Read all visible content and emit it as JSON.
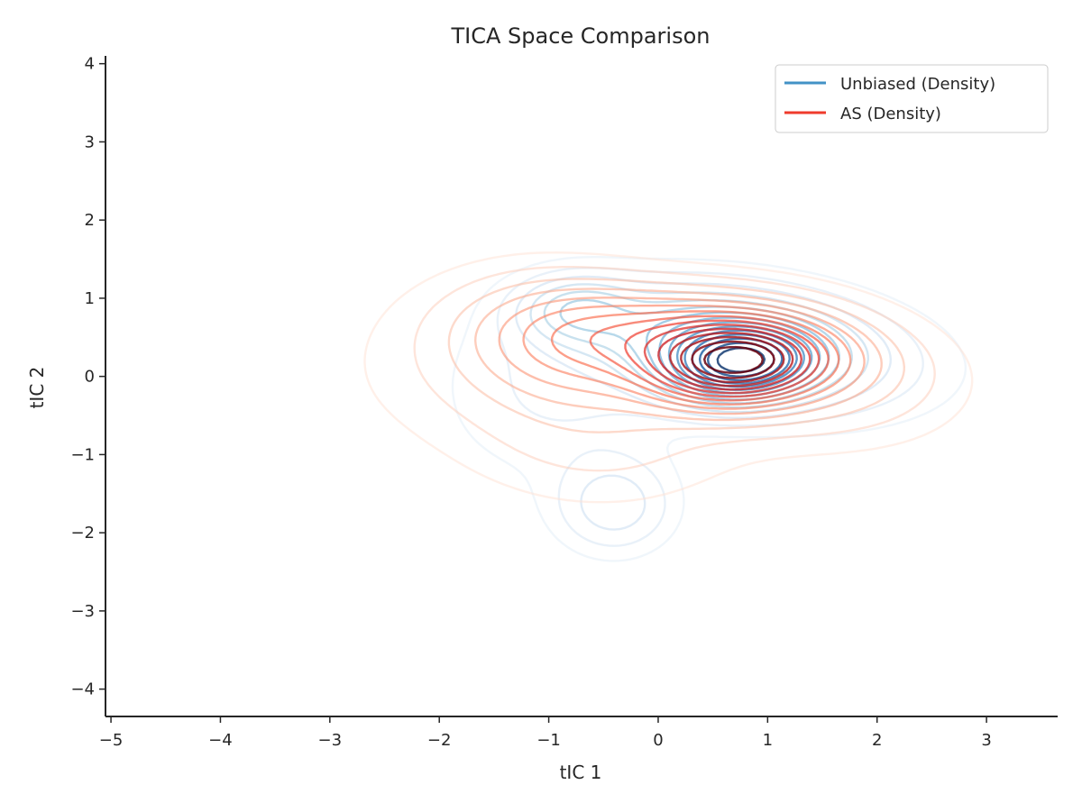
{
  "chart_data": {
    "type": "contour",
    "title": "TICA Space Comparison",
    "xlabel": "tIC 1",
    "ylabel": "tIC 2",
    "xlim": [
      -5.05,
      3.65
    ],
    "ylim": [
      -4.35,
      4.1
    ],
    "xticks": [
      -5,
      -4,
      -3,
      -2,
      -1,
      0,
      1,
      2,
      3
    ],
    "yticks": [
      -4,
      -3,
      -2,
      -1,
      0,
      1,
      2,
      3,
      4
    ],
    "xtick_labels": [
      "−5",
      "−4",
      "−3",
      "−2",
      "−1",
      "0",
      "1",
      "2",
      "3"
    ],
    "ytick_labels": [
      "−4",
      "−3",
      "−2",
      "−1",
      "0",
      "1",
      "2",
      "3",
      "4"
    ],
    "grid": false,
    "legend_position": "top-right",
    "series": [
      {
        "name": "Unbiased (Density)",
        "color": "#4292c6",
        "colormap": "Blues",
        "components": [
          {
            "mx": 0.75,
            "my": 0.15,
            "sx": 0.42,
            "sy": 0.3,
            "rho": 0.1,
            "w": 1.0
          },
          {
            "mx": 0.6,
            "my": 0.45,
            "sx": 0.75,
            "sy": 0.42,
            "rho": -0.25,
            "w": 0.5
          },
          {
            "mx": -0.75,
            "my": 0.85,
            "sx": 0.35,
            "sy": 0.28,
            "rho": 0.0,
            "w": 0.32
          },
          {
            "mx": -0.4,
            "my": -1.65,
            "sx": 0.35,
            "sy": 0.4,
            "rho": 0.0,
            "w": 0.22
          },
          {
            "mx": 1.0,
            "my": 0.3,
            "sx": 1.05,
            "sy": 0.6,
            "rho": -0.2,
            "w": 0.18
          },
          {
            "mx": -1.0,
            "my": -0.2,
            "sx": 0.7,
            "sy": 0.8,
            "rho": 0.0,
            "w": 0.1
          }
        ]
      },
      {
        "name": "AS (Density)",
        "color": "#ef3b2c",
        "colormap": "Reds",
        "components": [
          {
            "mx": 0.7,
            "my": 0.15,
            "sx": 0.5,
            "sy": 0.33,
            "rho": 0.1,
            "w": 1.0
          },
          {
            "mx": 0.4,
            "my": 0.45,
            "sx": 0.9,
            "sy": 0.42,
            "rho": -0.25,
            "w": 0.55
          },
          {
            "mx": -0.9,
            "my": 0.4,
            "sx": 0.65,
            "sy": 0.55,
            "rho": -0.1,
            "w": 0.35
          },
          {
            "mx": -0.5,
            "my": -0.8,
            "sx": 0.85,
            "sy": 0.6,
            "rho": 0.0,
            "w": 0.12
          },
          {
            "mx": 1.2,
            "my": 0.1,
            "sx": 0.9,
            "sy": 0.6,
            "rho": -0.25,
            "w": 0.22
          },
          {
            "mx": -2.0,
            "my": 0.1,
            "sx": 0.8,
            "sy": 0.75,
            "rho": 0.0,
            "w": 0.06
          }
        ]
      }
    ],
    "levels": 15
  }
}
